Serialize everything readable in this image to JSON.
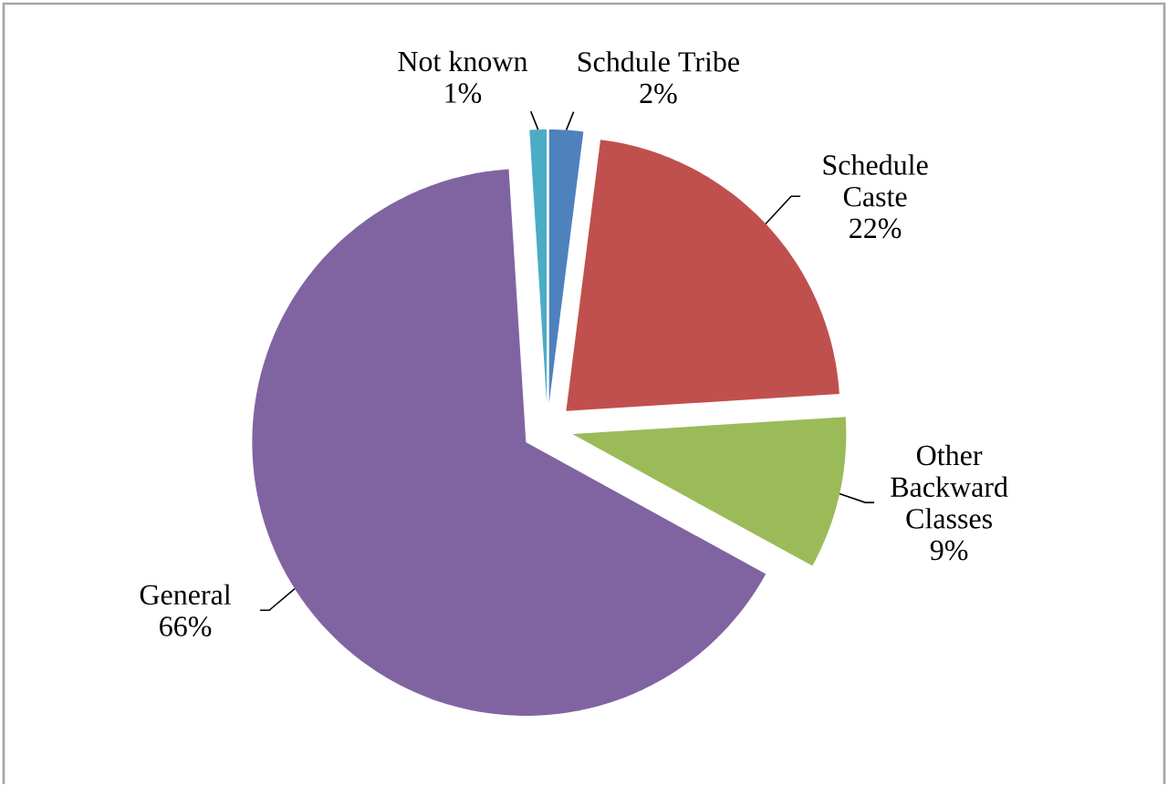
{
  "chart_data": {
    "type": "pie",
    "categories": [
      "Schdule Tribe",
      "Schedule Caste",
      "Other Backward Classes",
      "General",
      "Not known"
    ],
    "values": [
      2,
      22,
      9,
      66,
      1
    ],
    "value_labels": [
      "2%",
      "22%",
      "9%",
      "66%",
      "1%"
    ],
    "colors": [
      "#4f81bd",
      "#c0504d",
      "#9bbb59",
      "#8064a2",
      "#4bacc6"
    ]
  }
}
